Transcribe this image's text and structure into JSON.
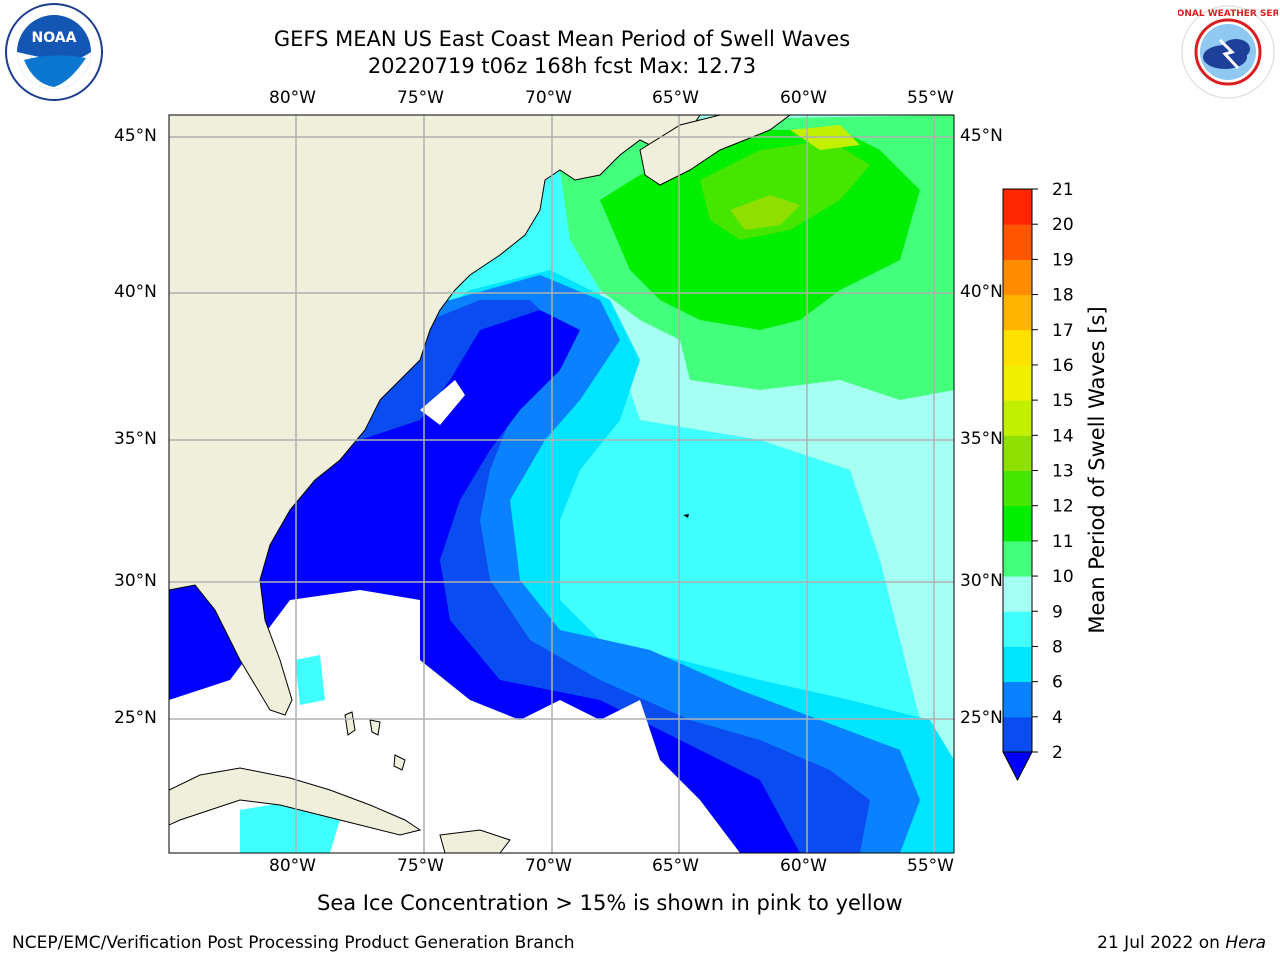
{
  "header": {
    "title_line1": "GEFS MEAN US East Coast Mean Period of Swell Waves",
    "title_line2": "20220719 t06z 168h fcst   Max: 12.73"
  },
  "logos": {
    "noaa_text": "NOAA",
    "nws_text": "NATIONAL WEATHER SERVICE"
  },
  "map": {
    "lon_labels": [
      "80°W",
      "75°W",
      "70°W",
      "65°W",
      "60°W",
      "55°W"
    ],
    "lat_labels": [
      "45°N",
      "40°N",
      "35°N",
      "30°N",
      "25°N"
    ],
    "colors": {
      "land": "#efefdc",
      "mask": "#ffffff",
      "grid": "#b0b0b0"
    }
  },
  "colorbar": {
    "label": "Mean Period of Swell Waves [s]",
    "ticks": [
      "2",
      "4",
      "6",
      "8",
      "9",
      "10",
      "11",
      "12",
      "13",
      "14",
      "15",
      "16",
      "17",
      "18",
      "19",
      "20",
      "21"
    ],
    "colors": [
      "#0a4cf0",
      "#0a82ff",
      "#00e5ff",
      "#40ffff",
      "#a6fff3",
      "#44ff7b",
      "#00ee00",
      "#45e600",
      "#8fe000",
      "#c3f000",
      "#f0f000",
      "#ffe200",
      "#ffb500",
      "#ff8c00",
      "#ff5500",
      "#ff2600",
      "#ff0000"
    ],
    "extend_color": "#0000ff"
  },
  "footer": {
    "note": "Sea Ice Concentration > 15% is shown in pink to yellow",
    "left": "NCEP/EMC/Verification Post Processing Product Generation Branch",
    "right_prefix": "21 Jul 2022 on ",
    "right_host": "Hera"
  }
}
